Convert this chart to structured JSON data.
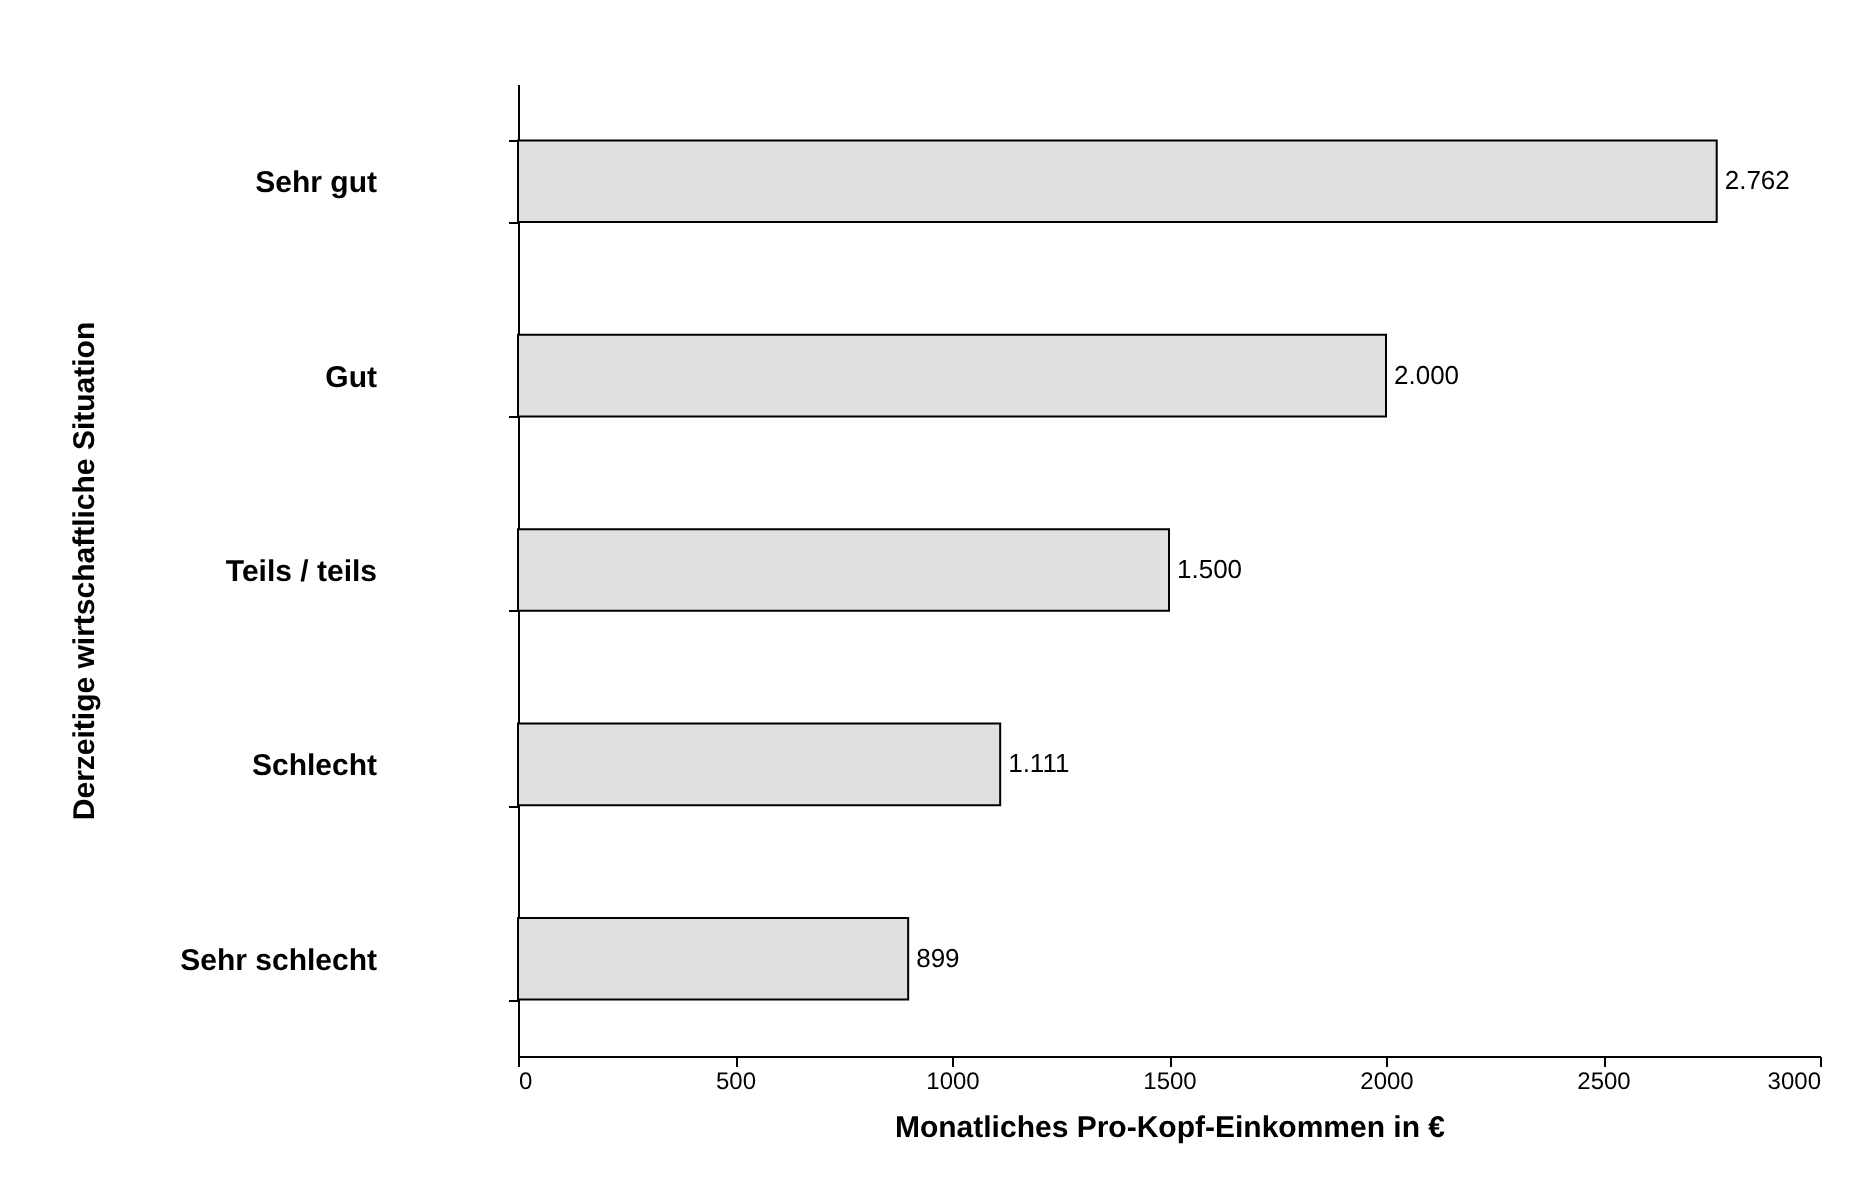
{
  "chart_data": {
    "type": "bar",
    "orientation": "horizontal",
    "xlabel": "Monatliches Pro-Kopf-Einkommen in €",
    "ylabel": "Derzeitige wirtschaftliche Situation",
    "categories": [
      "Sehr gut",
      "Gut",
      "Teils / teils",
      "Schlecht",
      "Sehr schlecht"
    ],
    "values": [
      2762,
      2000,
      1500,
      1111,
      899
    ],
    "value_labels": [
      "2.762",
      "2.000",
      "1.500",
      "1.111",
      "899"
    ],
    "color": "#e0e0e0",
    "xlim": [
      0,
      3000
    ],
    "xticks": [
      0,
      500,
      1000,
      1500,
      2000,
      2500,
      3000
    ],
    "grid": false
  }
}
